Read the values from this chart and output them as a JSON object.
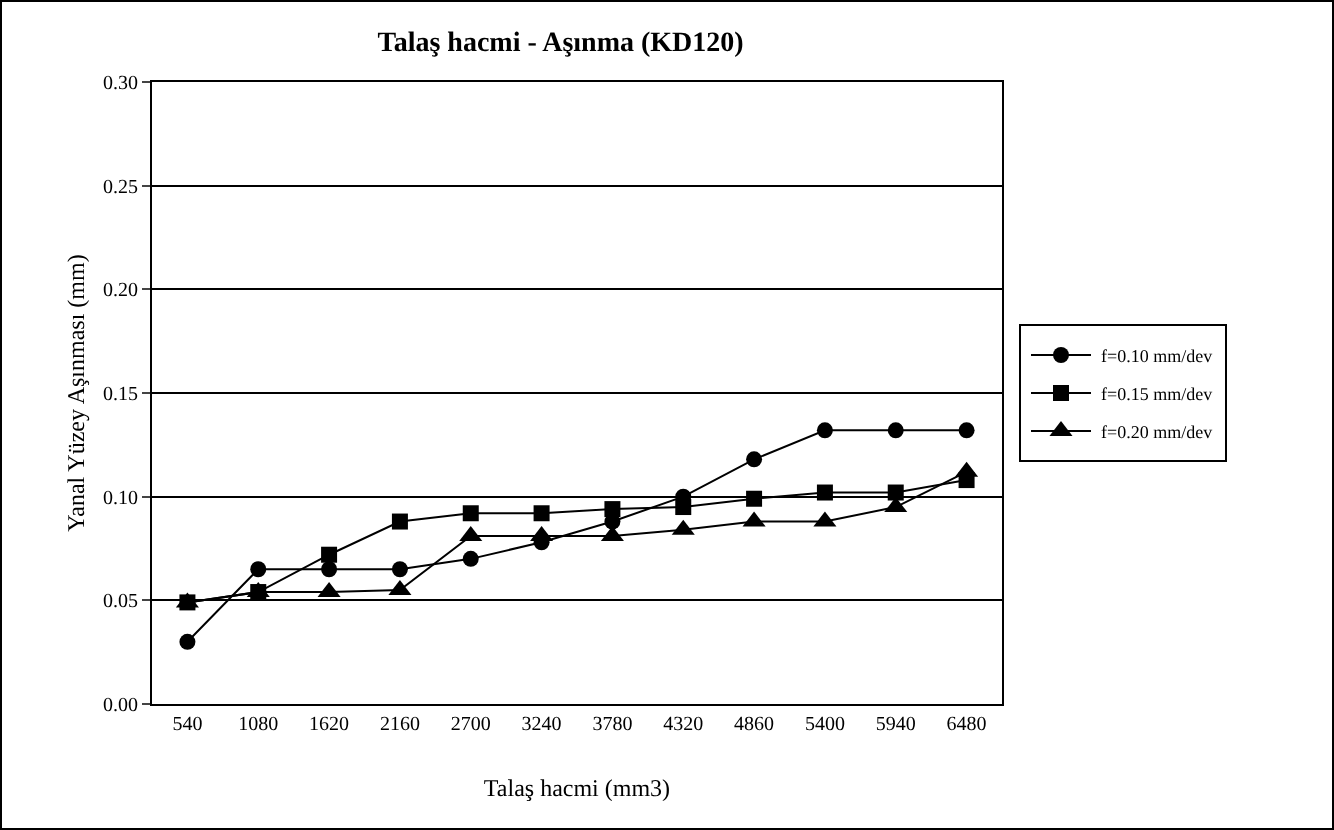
{
  "chart_data": {
    "type": "line",
    "title": "Talaş hacmi - Aşınma (KD120)",
    "xlabel": "Talaş hacmi (mm3)",
    "ylabel": "Yanal Yüzey Aşınması (mm)",
    "categories": [
      "540",
      "1080",
      "1620",
      "2160",
      "2700",
      "3240",
      "3780",
      "4320",
      "4860",
      "5400",
      "5940",
      "6480"
    ],
    "series": [
      {
        "name": "f=0.10 mm/dev",
        "color": "#000000",
        "marker": "circle",
        "values": [
          0.03,
          0.065,
          0.065,
          0.065,
          0.07,
          0.078,
          0.088,
          0.1,
          0.118,
          0.132,
          0.132,
          0.132
        ]
      },
      {
        "name": "f=0.15 mm/dev",
        "color": "#000000",
        "marker": "square",
        "values": [
          0.049,
          0.054,
          0.072,
          0.088,
          0.092,
          0.092,
          0.094,
          0.095,
          0.099,
          0.102,
          0.102,
          0.108
        ]
      },
      {
        "name": "f=0.20 mm/dev",
        "color": "#000000",
        "marker": "triangle",
        "values": [
          0.049,
          0.054,
          0.054,
          0.055,
          0.081,
          0.081,
          0.081,
          0.084,
          0.088,
          0.088,
          0.095,
          0.112
        ]
      }
    ],
    "ylim": [
      0,
      0.3
    ],
    "yticks": [
      {
        "value": 0,
        "label": "0.00"
      },
      {
        "value": 0.05,
        "label": "0.05"
      },
      {
        "value": 0.1,
        "label": "0.10"
      },
      {
        "value": 0.15,
        "label": "0.15"
      },
      {
        "value": 0.2,
        "label": "0.20"
      },
      {
        "value": 0.25,
        "label": "0.25"
      },
      {
        "value": 0.3,
        "label": "0.30"
      }
    ],
    "grid": "y",
    "legend": "right"
  }
}
